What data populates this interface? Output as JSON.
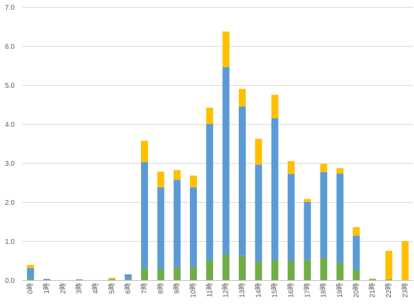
{
  "chart_data": {
    "type": "bar",
    "stacked": true,
    "title": "",
    "xlabel": "",
    "ylabel": "",
    "ylim": [
      0,
      7
    ],
    "yticks": [
      "0.0",
      "1.0",
      "2.0",
      "3.0",
      "4.0",
      "5.0",
      "6.0",
      "7.0"
    ],
    "grid": true,
    "legend": "none",
    "categories": [
      "0時",
      "1時",
      "2時",
      "3時",
      "4時",
      "5時",
      "6時",
      "7時",
      "8時",
      "9時",
      "10時",
      "11時",
      "12時",
      "13時",
      "14時",
      "15時",
      "16時",
      "17時",
      "18時",
      "19時",
      "20時",
      "21時",
      "22時",
      "23時"
    ],
    "series": [
      {
        "color": "#70AD47",
        "values": [
          0.03,
          0.0,
          0.0,
          0.0,
          0.0,
          0.02,
          0.03,
          0.3,
          0.28,
          0.32,
          0.33,
          0.52,
          0.66,
          0.63,
          0.48,
          0.52,
          0.5,
          0.52,
          0.57,
          0.45,
          0.26,
          0.02,
          0.02,
          0.0
        ]
      },
      {
        "color": "#5B9BD5",
        "values": [
          0.28,
          0.03,
          0.0,
          0.02,
          0.0,
          0.0,
          0.12,
          2.73,
          2.1,
          2.25,
          2.05,
          3.48,
          4.8,
          3.82,
          2.48,
          3.63,
          2.22,
          1.48,
          2.2,
          2.28,
          0.88,
          0.0,
          0.0,
          0.0
        ]
      },
      {
        "color": "#FFC000",
        "values": [
          0.08,
          0.0,
          0.0,
          0.0,
          0.0,
          0.04,
          0.0,
          0.54,
          0.4,
          0.25,
          0.3,
          0.42,
          0.91,
          0.45,
          0.66,
          0.6,
          0.33,
          0.08,
          0.21,
          0.14,
          0.22,
          0.02,
          0.73,
          1.0
        ]
      }
    ]
  }
}
